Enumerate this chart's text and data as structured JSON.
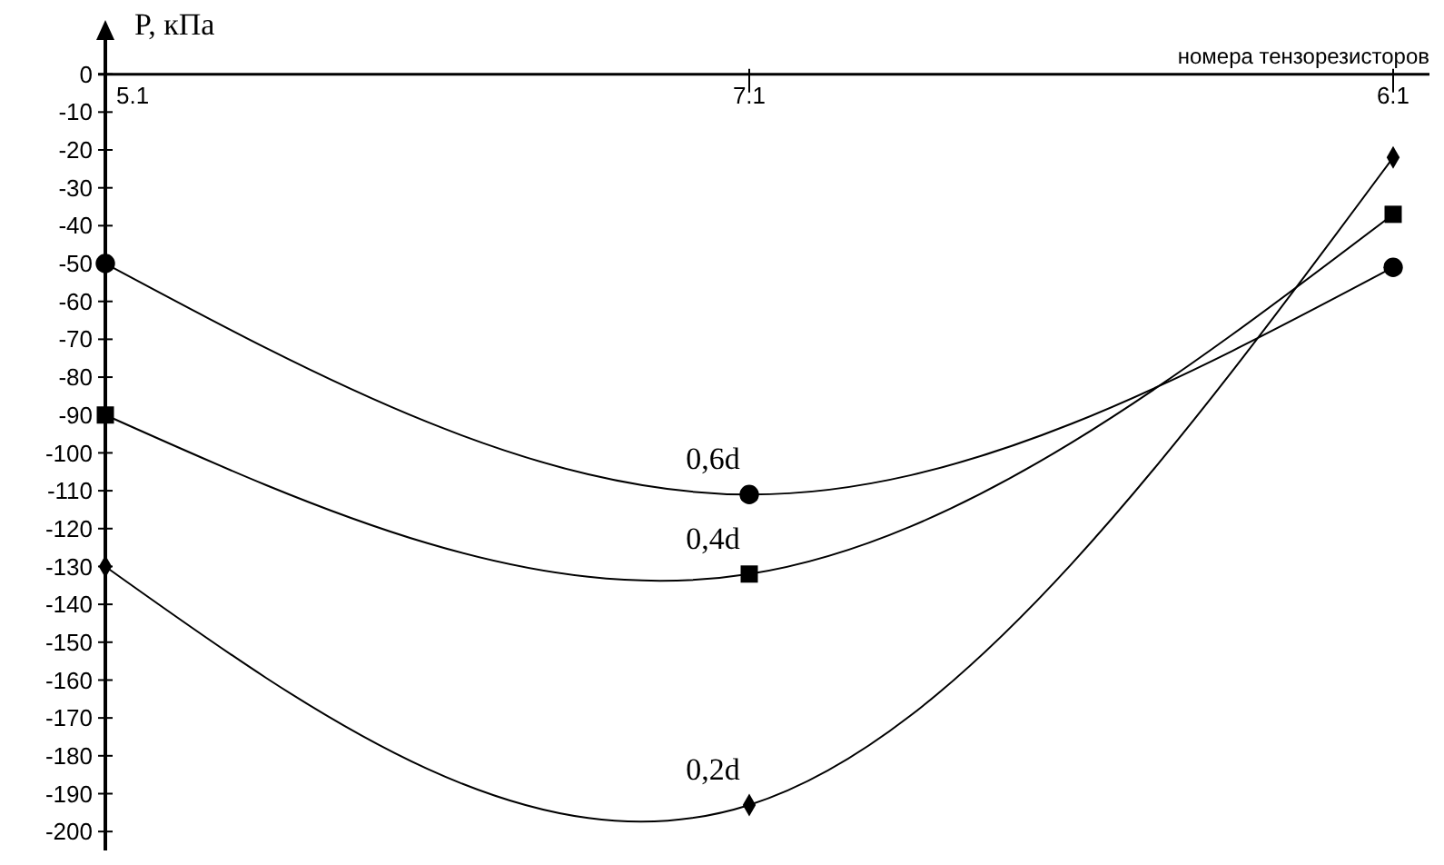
{
  "chart_data": {
    "type": "line",
    "ylabel": "P, кПа",
    "xlabel": "номера тензорезисторов",
    "categories": [
      "5.1",
      "7.1",
      "6.1"
    ],
    "series": [
      {
        "name": "0,6d",
        "color": "#000000",
        "marker": "circle",
        "values": [
          -50,
          -111,
          -51
        ]
      },
      {
        "name": "0,4d",
        "color": "#000000",
        "marker": "square",
        "values": [
          -90,
          -132,
          -37
        ]
      },
      {
        "name": "0,2d",
        "color": "#000000",
        "marker": "diamond",
        "values": [
          -130,
          -193,
          -22
        ]
      }
    ],
    "ylim": [
      -205,
      10
    ],
    "yticks": [
      0,
      -10,
      -20,
      -30,
      -40,
      -50,
      -60,
      -70,
      -80,
      -90,
      -100,
      -110,
      -120,
      -130,
      -140,
      -150,
      -160,
      -170,
      -180,
      -190,
      -200
    ],
    "grid": false,
    "line_style": "solid"
  }
}
